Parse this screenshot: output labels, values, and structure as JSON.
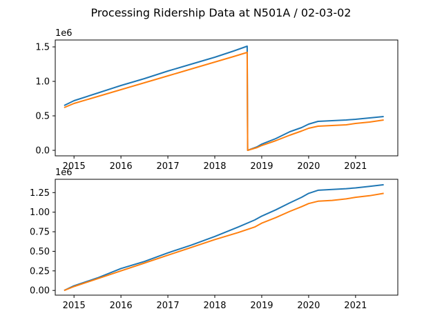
{
  "figure": {
    "title": "Processing Ridership Data at N501A / 02-03-02"
  },
  "chart_data": [
    {
      "type": "line",
      "title": "",
      "xlabel": "",
      "ylabel": "",
      "offset_label": "1e6",
      "xlim": [
        2014.6,
        2021.9
      ],
      "ylim": [
        -0.08,
        1.6
      ],
      "xticks": [
        2015,
        2016,
        2017,
        2018,
        2019,
        2020,
        2021
      ],
      "xtick_labels": [
        "2015",
        "2016",
        "2017",
        "2018",
        "2019",
        "2020",
        "2021"
      ],
      "yticks": [
        0.0,
        0.5,
        1.0,
        1.5
      ],
      "ytick_labels": [
        "0.0",
        "0.5",
        "1.0",
        "1.5"
      ],
      "grid": false,
      "series": [
        {
          "color": "#1f77b4",
          "x": [
            2014.79,
            2015.0,
            2015.5,
            2016.0,
            2016.5,
            2017.0,
            2017.5,
            2018.0,
            2018.4,
            2018.69,
            2018.7,
            2018.9,
            2019.0,
            2019.3,
            2019.6,
            2019.85,
            2020.0,
            2020.2,
            2020.5,
            2020.8,
            2021.0,
            2021.3,
            2021.6
          ],
          "y": [
            0.65,
            0.72,
            0.83,
            0.94,
            1.04,
            1.15,
            1.25,
            1.35,
            1.44,
            1.51,
            0.0,
            0.05,
            0.09,
            0.17,
            0.27,
            0.33,
            0.38,
            0.42,
            0.43,
            0.44,
            0.45,
            0.47,
            0.49
          ]
        },
        {
          "color": "#ff7f0e",
          "x": [
            2014.79,
            2015.0,
            2015.5,
            2016.0,
            2016.5,
            2017.0,
            2017.5,
            2018.0,
            2018.4,
            2018.69,
            2018.7,
            2018.9,
            2019.0,
            2019.3,
            2019.6,
            2019.85,
            2020.0,
            2020.2,
            2020.5,
            2020.8,
            2021.0,
            2021.3,
            2021.6
          ],
          "y": [
            0.62,
            0.68,
            0.78,
            0.88,
            0.98,
            1.08,
            1.18,
            1.28,
            1.36,
            1.42,
            0.0,
            0.04,
            0.07,
            0.14,
            0.22,
            0.28,
            0.32,
            0.35,
            0.36,
            0.37,
            0.39,
            0.41,
            0.44
          ]
        }
      ]
    },
    {
      "type": "line",
      "title": "",
      "xlabel": "",
      "ylabel": "",
      "offset_label": "1e6",
      "xlim": [
        2014.6,
        2021.9
      ],
      "ylim": [
        -0.06,
        1.42
      ],
      "xticks": [
        2015,
        2016,
        2017,
        2018,
        2019,
        2020,
        2021
      ],
      "xtick_labels": [
        "2015",
        "2016",
        "2017",
        "2018",
        "2019",
        "2020",
        "2021"
      ],
      "yticks": [
        0.0,
        0.25,
        0.5,
        0.75,
        1.0,
        1.25
      ],
      "ytick_labels": [
        "0.00",
        "0.25",
        "0.50",
        "0.75",
        "1.00",
        "1.25"
      ],
      "grid": false,
      "series": [
        {
          "color": "#1f77b4",
          "x": [
            2014.79,
            2015.0,
            2015.5,
            2016.0,
            2016.5,
            2017.0,
            2017.5,
            2018.0,
            2018.5,
            2018.85,
            2019.0,
            2019.3,
            2019.6,
            2019.85,
            2020.0,
            2020.2,
            2020.5,
            2020.8,
            2021.0,
            2021.3,
            2021.6
          ],
          "y": [
            0.0,
            0.06,
            0.16,
            0.28,
            0.37,
            0.48,
            0.58,
            0.69,
            0.81,
            0.9,
            0.95,
            1.03,
            1.12,
            1.19,
            1.24,
            1.28,
            1.29,
            1.3,
            1.31,
            1.33,
            1.35
          ]
        },
        {
          "color": "#ff7f0e",
          "x": [
            2014.79,
            2015.0,
            2015.5,
            2016.0,
            2016.5,
            2017.0,
            2017.5,
            2018.0,
            2018.5,
            2018.85,
            2019.0,
            2019.3,
            2019.6,
            2019.85,
            2020.0,
            2020.2,
            2020.5,
            2020.8,
            2021.0,
            2021.3,
            2021.6
          ],
          "y": [
            0.0,
            0.05,
            0.15,
            0.25,
            0.35,
            0.45,
            0.55,
            0.65,
            0.74,
            0.81,
            0.86,
            0.93,
            1.01,
            1.07,
            1.11,
            1.14,
            1.15,
            1.17,
            1.19,
            1.21,
            1.24
          ]
        }
      ]
    }
  ]
}
